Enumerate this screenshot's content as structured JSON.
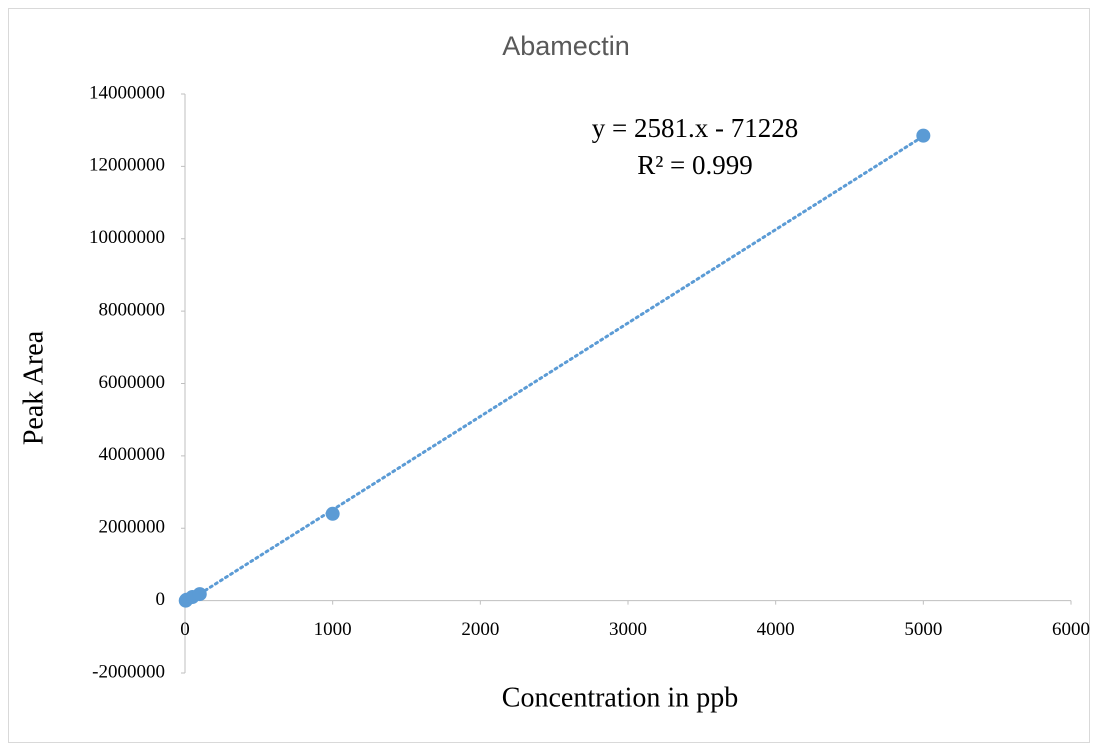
{
  "chart_data": {
    "type": "scatter",
    "title": "Abamectin",
    "x_label": "Concentration in ppb",
    "y_label": "Peak Area",
    "series": [
      {
        "name": "Abamectin",
        "color": "#5b9bd5",
        "x": [
          5,
          10,
          50,
          100,
          1000,
          5000
        ],
        "values": [
          0,
          25000,
          100000,
          180000,
          2400000,
          12850000
        ]
      }
    ],
    "trendline": {
      "label": "y = 2581.x - 71228",
      "r2_label": "R² = 0.999",
      "slope": 2581,
      "intercept": -71228,
      "color": "#5b9bd5"
    },
    "xlim": [
      0,
      6000
    ],
    "xticks": [
      0,
      1000,
      2000,
      3000,
      4000,
      5000,
      6000
    ],
    "ylim": [
      -2000000,
      14000000
    ],
    "yticks": [
      -2000000,
      0,
      2000000,
      4000000,
      6000000,
      8000000,
      10000000,
      12000000,
      14000000
    ],
    "grid": false
  }
}
